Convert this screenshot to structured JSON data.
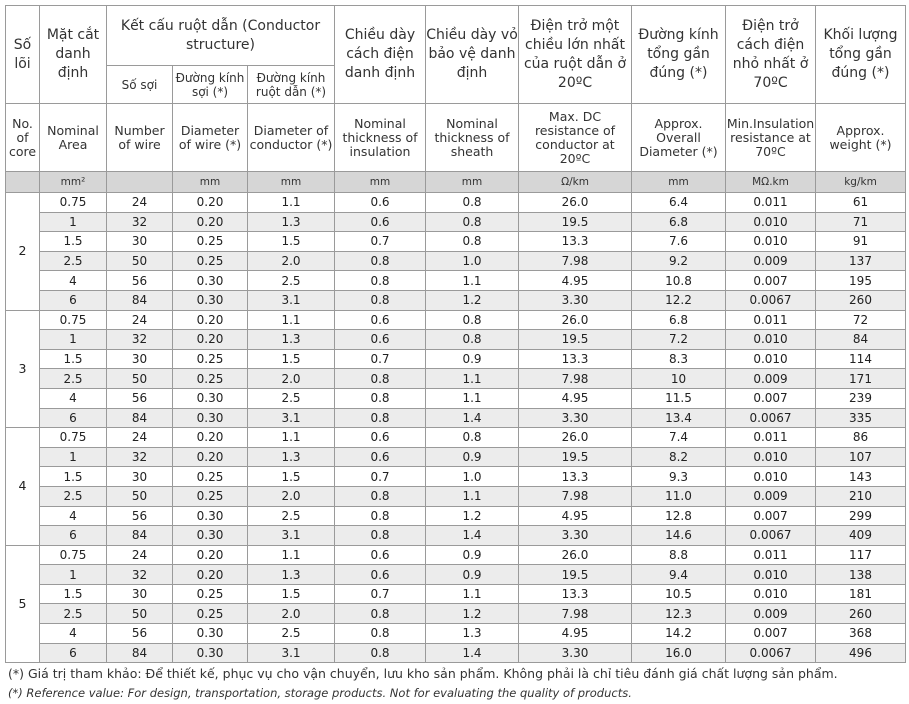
{
  "header_vi": {
    "cores": "Số lõi",
    "area": "Mặt cắt danh định",
    "conductor_structure": "Kết cấu ruột dẫn (Conductor structure)",
    "num_wire": "Số sợi",
    "wire_diam": "Đường kính sợi (*)",
    "cond_diam": "Đường kính ruột dẫn (*)",
    "ins_thick": "Chiều dày cách điện danh định",
    "sheath_thick": "Chiều dày vỏ bảo vệ danh định",
    "dc_res": "Điện trở một chiều lớn nhất của ruột dẫn ở 20ºC",
    "overall_diam": "Đường kính tổng gần đúng (*)",
    "ins_res": "Điện trở cách điện nhỏ nhất ở 70ºC",
    "weight": "Khối lượng tổng gần đúng (*)"
  },
  "header_en": {
    "cores": "No. of core",
    "area": "Nominal Area",
    "num_wire": "Number of wire",
    "wire_diam": "Diameter of wire (*)",
    "cond_diam": "Diameter of conductor (*)",
    "ins_thick": "Nominal thickness of insulation",
    "sheath_thick": "Nominal thickness of sheath",
    "dc_res": "Max. DC resistance of conductor at 20ºC",
    "overall_diam": "Approx. Overall Diameter (*)",
    "ins_res": "Min.Insulation resistance at 70ºC",
    "weight": "Approx. weight (*)"
  },
  "units": {
    "cores": "",
    "area": "mm²",
    "num_wire": "",
    "wire_diam": "mm",
    "cond_diam": "mm",
    "ins_thick": "mm",
    "sheath_thick": "mm",
    "dc_res": "Ω/km",
    "overall_diam": "mm",
    "ins_res": "MΩ.km",
    "weight": "kg/km"
  },
  "groups": [
    {
      "cores": "2",
      "rows": [
        [
          "0.75",
          "24",
          "0.20",
          "1.1",
          "0.6",
          "0.8",
          "26.0",
          "6.4",
          "0.011",
          "61"
        ],
        [
          "1",
          "32",
          "0.20",
          "1.3",
          "0.6",
          "0.8",
          "19.5",
          "6.8",
          "0.010",
          "71"
        ],
        [
          "1.5",
          "30",
          "0.25",
          "1.5",
          "0.7",
          "0.8",
          "13.3",
          "7.6",
          "0.010",
          "91"
        ],
        [
          "2.5",
          "50",
          "0.25",
          "2.0",
          "0.8",
          "1.0",
          "7.98",
          "9.2",
          "0.009",
          "137"
        ],
        [
          "4",
          "56",
          "0.30",
          "2.5",
          "0.8",
          "1.1",
          "4.95",
          "10.8",
          "0.007",
          "195"
        ],
        [
          "6",
          "84",
          "0.30",
          "3.1",
          "0.8",
          "1.2",
          "3.30",
          "12.2",
          "0.0067",
          "260"
        ]
      ]
    },
    {
      "cores": "3",
      "rows": [
        [
          "0.75",
          "24",
          "0.20",
          "1.1",
          "0.6",
          "0.8",
          "26.0",
          "6.8",
          "0.011",
          "72"
        ],
        [
          "1",
          "32",
          "0.20",
          "1.3",
          "0.6",
          "0.8",
          "19.5",
          "7.2",
          "0.010",
          "84"
        ],
        [
          "1.5",
          "30",
          "0.25",
          "1.5",
          "0.7",
          "0.9",
          "13.3",
          "8.3",
          "0.010",
          "114"
        ],
        [
          "2.5",
          "50",
          "0.25",
          "2.0",
          "0.8",
          "1.1",
          "7.98",
          "10",
          "0.009",
          "171"
        ],
        [
          "4",
          "56",
          "0.30",
          "2.5",
          "0.8",
          "1.1",
          "4.95",
          "11.5",
          "0.007",
          "239"
        ],
        [
          "6",
          "84",
          "0.30",
          "3.1",
          "0.8",
          "1.4",
          "3.30",
          "13.4",
          "0.0067",
          "335"
        ]
      ]
    },
    {
      "cores": "4",
      "rows": [
        [
          "0.75",
          "24",
          "0.20",
          "1.1",
          "0.6",
          "0.8",
          "26.0",
          "7.4",
          "0.011",
          "86"
        ],
        [
          "1",
          "32",
          "0.20",
          "1.3",
          "0.6",
          "0.9",
          "19.5",
          "8.2",
          "0.010",
          "107"
        ],
        [
          "1.5",
          "30",
          "0.25",
          "1.5",
          "0.7",
          "1.0",
          "13.3",
          "9.3",
          "0.010",
          "143"
        ],
        [
          "2.5",
          "50",
          "0.25",
          "2.0",
          "0.8",
          "1.1",
          "7.98",
          "11.0",
          "0.009",
          "210"
        ],
        [
          "4",
          "56",
          "0.30",
          "2.5",
          "0.8",
          "1.2",
          "4.95",
          "12.8",
          "0.007",
          "299"
        ],
        [
          "6",
          "84",
          "0.30",
          "3.1",
          "0.8",
          "1.4",
          "3.30",
          "14.6",
          "0.0067",
          "409"
        ]
      ]
    },
    {
      "cores": "5",
      "rows": [
        [
          "0.75",
          "24",
          "0.20",
          "1.1",
          "0.6",
          "0.9",
          "26.0",
          "8.8",
          "0.011",
          "117"
        ],
        [
          "1",
          "32",
          "0.20",
          "1.3",
          "0.6",
          "0.9",
          "19.5",
          "9.4",
          "0.010",
          "138"
        ],
        [
          "1.5",
          "30",
          "0.25",
          "1.5",
          "0.7",
          "1.1",
          "13.3",
          "10.5",
          "0.010",
          "181"
        ],
        [
          "2.5",
          "50",
          "0.25",
          "2.0",
          "0.8",
          "1.2",
          "7.98",
          "12.3",
          "0.009",
          "260"
        ],
        [
          "4",
          "56",
          "0.30",
          "2.5",
          "0.8",
          "1.3",
          "4.95",
          "14.2",
          "0.007",
          "368"
        ],
        [
          "6",
          "84",
          "0.30",
          "3.1",
          "0.8",
          "1.4",
          "3.30",
          "16.0",
          "0.0067",
          "496"
        ]
      ]
    }
  ],
  "footnote_vi": "(*) Giá trị tham khảo: Để thiết kế, phục vụ cho vận chuyển, lưu kho sản phẩm. Không phải là chỉ tiêu đánh giá chất lượng sản phẩm.",
  "footnote_en": "(*) Reference value: For design, transportation, storage products. Not for evaluating the quality of products."
}
